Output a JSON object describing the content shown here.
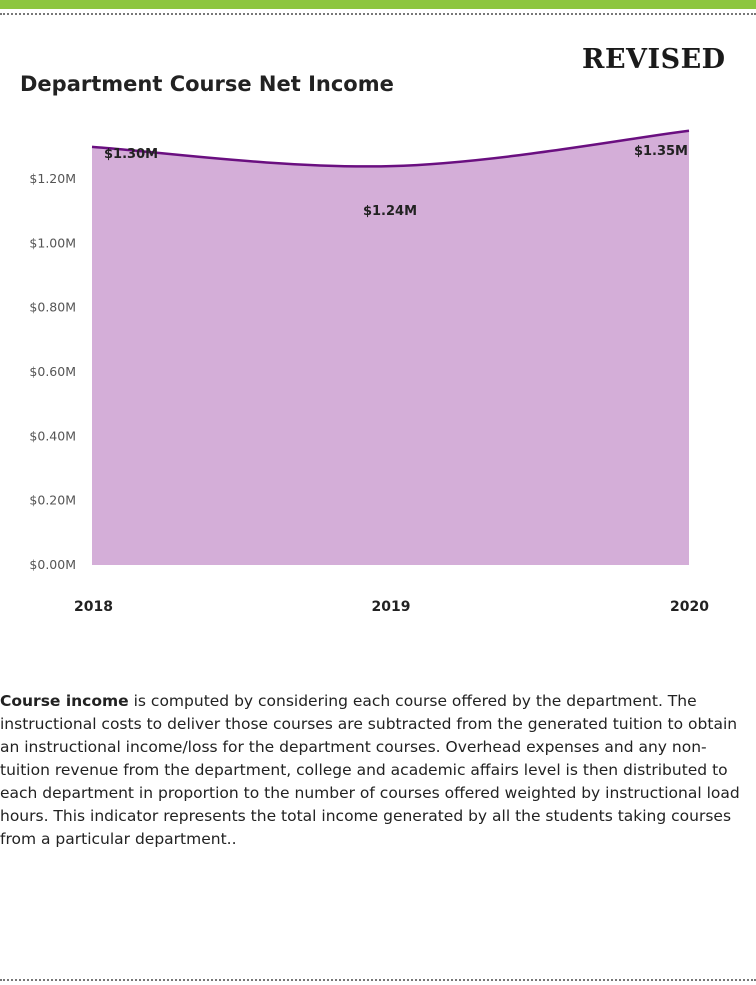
{
  "stamp": "REVISED",
  "title": "Department Course Net Income",
  "colors": {
    "top_band": "#8dc63f",
    "area_fill": "#d4aed8",
    "line": "#6a0f80"
  },
  "chart_data": {
    "type": "area",
    "title": "Department Course Net Income",
    "xlabel": "",
    "ylabel": "",
    "categories": [
      "2018",
      "2019",
      "2020"
    ],
    "values": [
      1.3,
      1.24,
      1.35
    ],
    "data_labels": [
      "$1.30M",
      "$1.24M",
      "$1.35M"
    ],
    "y_ticks": [
      0.0,
      0.2,
      0.4,
      0.6,
      0.8,
      1.0,
      1.2
    ],
    "y_tick_labels": [
      "$0.00M",
      "$0.20M",
      "$0.40M",
      "$0.60M",
      "$0.80M",
      "$1.00M",
      "$1.20M"
    ],
    "ylim": [
      0,
      1.35
    ],
    "grid": false,
    "legend": "none"
  },
  "description": {
    "term": "Course income",
    "text": " is computed by considering each course offered by the department.  The instructional costs to deliver those courses are subtracted from the generated tuition to obtain an instructional income/loss for the department courses.  Overhead expenses and any non-tuition revenue from the department, college and academic affairs level is then distributed to each department in proportion to the number of courses offered weighted by instructional load hours.  This indicator represents the total income generated by all the students taking courses from a particular department.."
  }
}
